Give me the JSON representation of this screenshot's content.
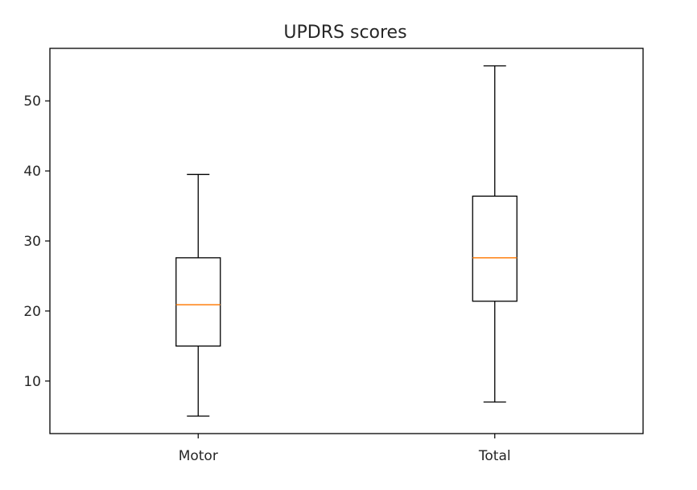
{
  "chart_data": {
    "type": "boxplot",
    "title": "UPDRS scores",
    "xlabel": "",
    "ylabel": "",
    "categories": [
      "Motor",
      "Total"
    ],
    "boxes": [
      {
        "category": "Motor",
        "whisker_low": 5.0,
        "q1": 15.0,
        "median": 20.9,
        "q3": 27.6,
        "whisker_high": 39.5
      },
      {
        "category": "Total",
        "whisker_low": 7.0,
        "q1": 21.4,
        "median": 27.6,
        "q3": 36.4,
        "whisker_high": 55.0
      }
    ],
    "ylim": [
      2.5,
      57.5
    ],
    "yticks": [
      10,
      20,
      30,
      40,
      50
    ],
    "grid": false,
    "legend": "none",
    "colors": {
      "box": "#000000",
      "median": "#ff7f0e",
      "axis": "#000000",
      "text": "#262626"
    }
  }
}
